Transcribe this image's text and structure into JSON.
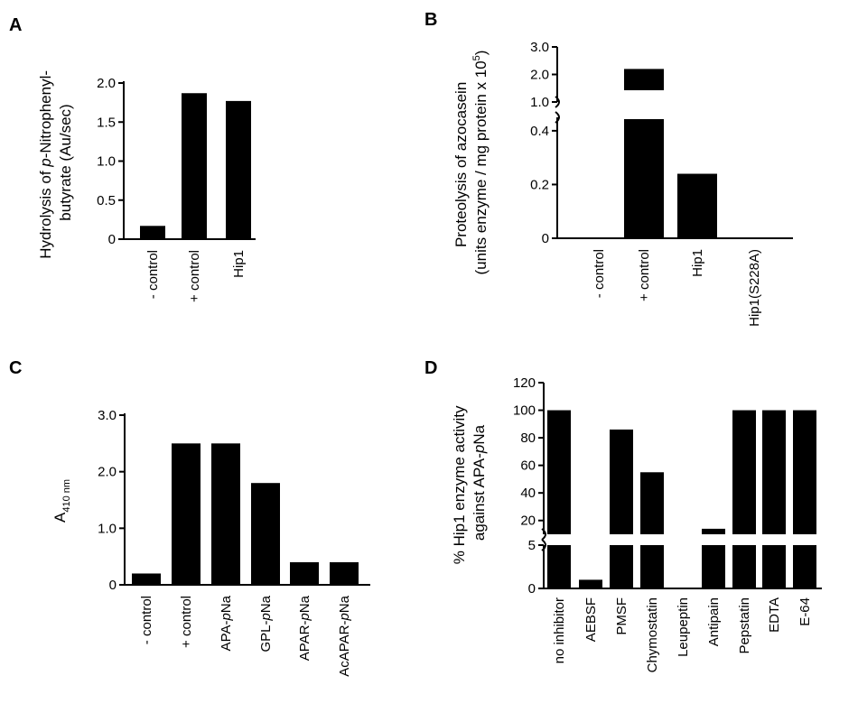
{
  "chart_data": [
    {
      "panel": "A",
      "type": "bar",
      "categories": [
        "- control",
        "+ control",
        "Hip1"
      ],
      "values": [
        0.17,
        1.87,
        1.77
      ],
      "ylim": [
        0,
        2.0
      ],
      "yticks": [
        "0",
        "0.5",
        "1.0",
        "1.5",
        "2.0"
      ],
      "ylabel_line1": "Hydrolysis of p-Nitrophenyl-",
      "ylabel_line2": "butyrate (Au/sec)",
      "bar_color": "#000000"
    },
    {
      "panel": "B",
      "type": "bar",
      "categories": [
        "- control",
        "+ control",
        "Hip1",
        "Hip1(S228A)"
      ],
      "values": [
        0,
        2.2,
        0.24,
        0
      ],
      "axis_break": true,
      "lower_ylim": [
        0,
        0.45
      ],
      "upper_ylim": [
        1.0,
        3.0
      ],
      "yticks_lower": [
        "0",
        "0.2",
        "0.4"
      ],
      "yticks_upper": [
        "1.0",
        "2.0",
        "3.0"
      ],
      "ylabel_line1": "Proteolysis of azocasein",
      "ylabel_line2": "(units enzyme / mg protein x 10",
      "ylabel_sup": "5",
      "ylabel_end": ")",
      "bar_color": "#000000"
    },
    {
      "panel": "C",
      "type": "bar",
      "categories": [
        "- control",
        "+ control",
        "APA-",
        "GPL-",
        "APAR-",
        "AcAPAR-"
      ],
      "category_suffix_italic": [
        "",
        "",
        "p",
        "p",
        "p",
        "p"
      ],
      "category_suffix": [
        "",
        "",
        "Na",
        "Na",
        "Na",
        "Na"
      ],
      "values": [
        0.2,
        2.5,
        2.5,
        1.8,
        0.4,
        0.4
      ],
      "ylim": [
        0,
        3.0
      ],
      "yticks": [
        "0",
        "1.0",
        "2.0",
        "3.0"
      ],
      "ylabel_main": "A",
      "ylabel_sub": "410 nm",
      "bar_color": "#000000"
    },
    {
      "panel": "D",
      "type": "bar",
      "categories": [
        "no inhibitor",
        "AEBSF",
        "PMSF",
        "Chymostatin",
        "Leupeptin",
        "Antipain",
        "Pepstatin",
        "EDTA",
        "E-64"
      ],
      "values": [
        100,
        1,
        86,
        55,
        0,
        14,
        100,
        100,
        100
      ],
      "axis_break": true,
      "lower_ylim": [
        0,
        5
      ],
      "upper_ylim": [
        10,
        120
      ],
      "yticks_lower": [
        "0",
        "5"
      ],
      "yticks_upper": [
        "20",
        "40",
        "60",
        "80",
        "100",
        "120"
      ],
      "ylabel_line1": "% Hip1 enzyme activity",
      "ylabel_line2": "against APA-",
      "ylabel_italic": "p",
      "ylabel_end": "Na",
      "bar_color": "#000000"
    }
  ]
}
